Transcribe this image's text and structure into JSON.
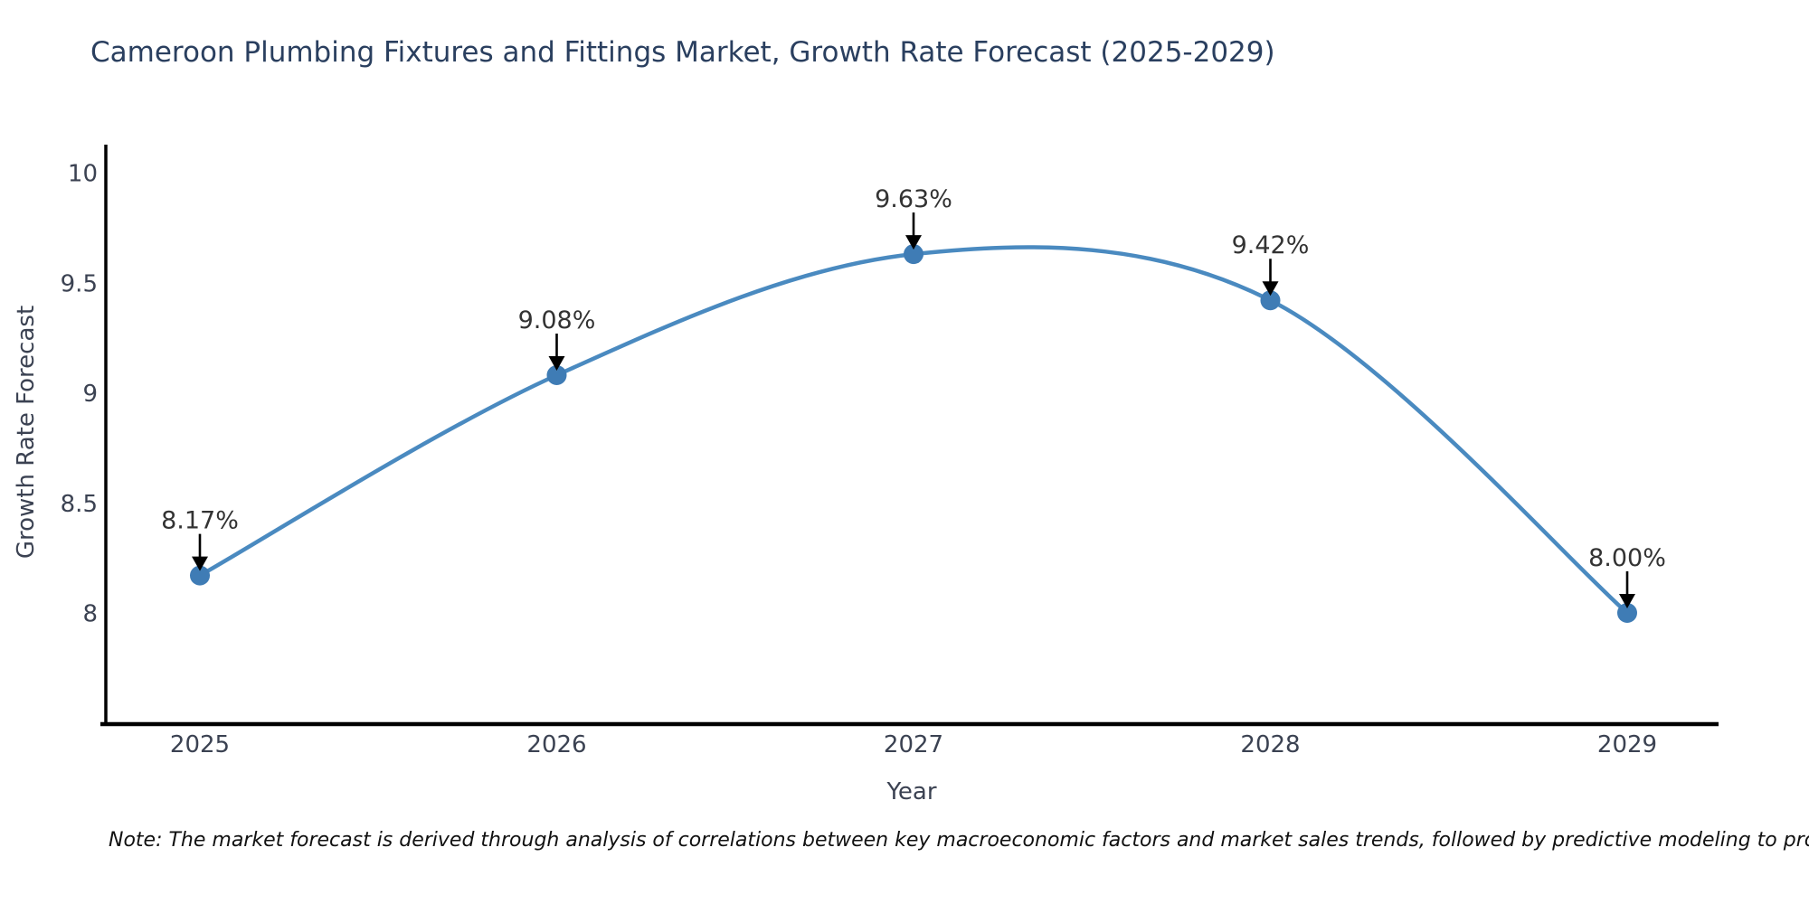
{
  "title": "Cameroon Plumbing Fixtures and Fittings Market, Growth Rate Forecast (2025-2029)",
  "note": "Note: The market forecast is derived through analysis of correlations between key macroeconomic factors and market sales trends, followed by predictive modeling to project future sales",
  "chart_data": {
    "type": "line",
    "title": "Cameroon Plumbing Fixtures and Fittings Market, Growth Rate Forecast (2025-2029)",
    "xlabel": "Year",
    "ylabel": "Growth Rate Forecast",
    "x": [
      2025,
      2026,
      2027,
      2028,
      2029
    ],
    "values": [
      8.17,
      9.08,
      9.63,
      9.42,
      8.0
    ],
    "point_labels": [
      "8.17%",
      "9.08%",
      "9.63%",
      "9.42%",
      "8.00%"
    ],
    "series_name": "Growth Rate Forecast",
    "yticks": [
      8,
      8.5,
      9,
      9.5,
      10
    ],
    "ytick_labels": [
      "8",
      "8.5",
      "9",
      "9.5",
      "10"
    ],
    "xtick_labels": [
      "2025",
      "2026",
      "2027",
      "2028",
      "2029"
    ],
    "ylim": [
      7.49,
      10.13
    ],
    "grid": false,
    "legend": "none",
    "line_style": "spline",
    "annotations_arrow": "down",
    "colors": {
      "line": "#4a8ac0",
      "marker": "#3f7cb5",
      "axis": "#000000",
      "title": "#2a3f5f",
      "tick_label": "#3b4252",
      "annotation_text": "#333333",
      "annotation_arrow": "#000000",
      "note_text": "#111111",
      "background": "#ffffff"
    }
  }
}
